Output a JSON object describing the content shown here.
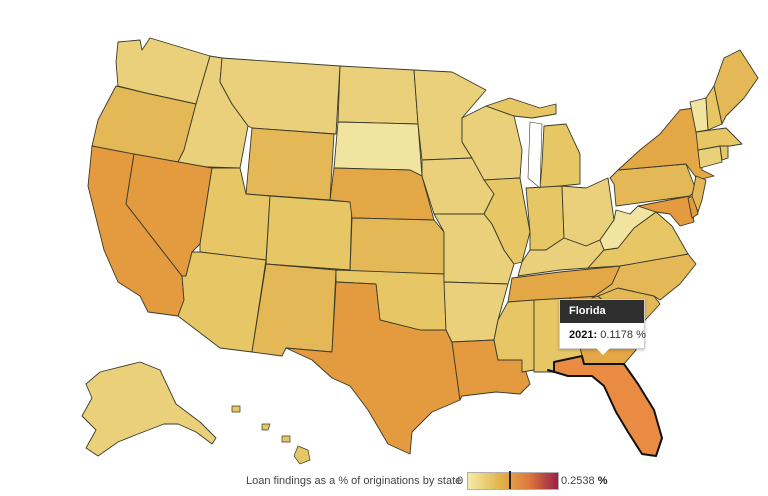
{
  "tooltip": {
    "state": "Florida",
    "year_label": "2021:",
    "value_text": "0.1178 %"
  },
  "legend": {
    "title": "Loan findings as a % of originations by state",
    "min_label": "0",
    "max_label": "0.2538",
    "unit": "%",
    "color_stops": [
      "#f3ecaa",
      "#e3b84c",
      "#e07a3d",
      "#9a2046"
    ],
    "marker_value": 0.1178,
    "max_value": 0.2538
  },
  "colors": {
    "very_light": "#f1e4a0",
    "light": "#ead07a",
    "medium_light": "#e7c765",
    "medium": "#e4b856",
    "medium_dark": "#e3a745",
    "dark": "#e49a3e",
    "darker": "#e98b42"
  },
  "states": [
    {
      "name": "Washington",
      "shade": "light"
    },
    {
      "name": "Oregon",
      "shade": "medium"
    },
    {
      "name": "California",
      "shade": "dark"
    },
    {
      "name": "Idaho",
      "shade": "light"
    },
    {
      "name": "Nevada",
      "shade": "dark"
    },
    {
      "name": "Montana",
      "shade": "light"
    },
    {
      "name": "Wyoming",
      "shade": "medium"
    },
    {
      "name": "Utah",
      "shade": "medium_light"
    },
    {
      "name": "Arizona",
      "shade": "medium_light"
    },
    {
      "name": "Colorado",
      "shade": "medium_light"
    },
    {
      "name": "New Mexico",
      "shade": "medium"
    },
    {
      "name": "North Dakota",
      "shade": "light"
    },
    {
      "name": "South Dakota",
      "shade": "very_light"
    },
    {
      "name": "Nebraska",
      "shade": "medium_dark"
    },
    {
      "name": "Kansas",
      "shade": "medium"
    },
    {
      "name": "Oklahoma",
      "shade": "medium_light"
    },
    {
      "name": "Texas",
      "shade": "dark"
    },
    {
      "name": "Minnesota",
      "shade": "light"
    },
    {
      "name": "Iowa",
      "shade": "light"
    },
    {
      "name": "Missouri",
      "shade": "light"
    },
    {
      "name": "Arkansas",
      "shade": "light"
    },
    {
      "name": "Louisiana",
      "shade": "dark"
    },
    {
      "name": "Wisconsin",
      "shade": "light"
    },
    {
      "name": "Illinois",
      "shade": "medium_light"
    },
    {
      "name": "Michigan",
      "shade": "medium_light"
    },
    {
      "name": "Indiana",
      "shade": "medium_light"
    },
    {
      "name": "Ohio",
      "shade": "light"
    },
    {
      "name": "Kentucky",
      "shade": "light"
    },
    {
      "name": "Tennessee",
      "shade": "medium_dark"
    },
    {
      "name": "Mississippi",
      "shade": "medium_light"
    },
    {
      "name": "Alabama",
      "shade": "medium_light"
    },
    {
      "name": "Georgia",
      "shade": "medium_dark"
    },
    {
      "name": "Florida",
      "shade": "darker"
    },
    {
      "name": "South Carolina",
      "shade": "medium"
    },
    {
      "name": "North Carolina",
      "shade": "medium"
    },
    {
      "name": "Virginia",
      "shade": "medium_light"
    },
    {
      "name": "West Virginia",
      "shade": "very_light"
    },
    {
      "name": "Pennsylvania",
      "shade": "medium"
    },
    {
      "name": "New York",
      "shade": "medium_dark"
    },
    {
      "name": "Maryland",
      "shade": "dark"
    },
    {
      "name": "New Jersey",
      "shade": "medium"
    },
    {
      "name": "Maine",
      "shade": "medium"
    },
    {
      "name": "Vermont",
      "shade": "very_light"
    },
    {
      "name": "New Hampshire",
      "shade": "medium_light"
    },
    {
      "name": "Massachusetts",
      "shade": "medium_light"
    },
    {
      "name": "Connecticut",
      "shade": "light"
    },
    {
      "name": "Alaska",
      "shade": "light"
    },
    {
      "name": "Hawaii",
      "shade": "medium_light"
    }
  ]
}
